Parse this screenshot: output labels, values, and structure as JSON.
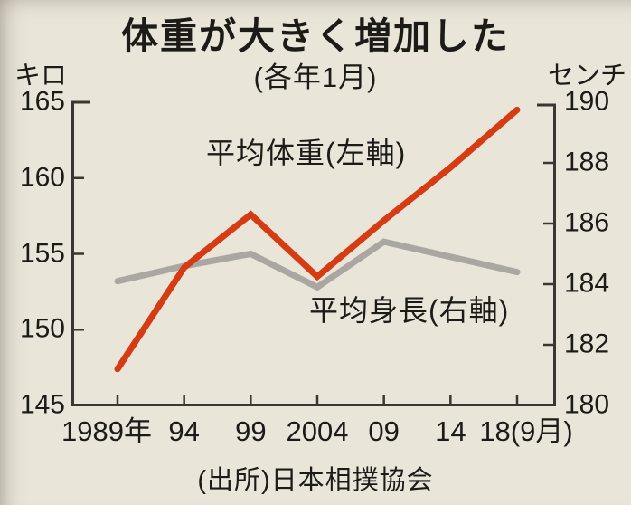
{
  "title": "体重が大きく増加した",
  "subtitle": "(各年1月)",
  "left_axis_unit": "キロ",
  "right_axis_unit": "センチ",
  "source": "(出所)日本相撲協会",
  "series_labels": {
    "weight": "平均体重(左軸)",
    "height": "平均身長(右軸)"
  },
  "colors": {
    "background": "#e9e5d9",
    "text": "#1c1b18",
    "axis": "#3a3733",
    "weight_line": "#d63c14",
    "height_line": "#aaa7a2"
  },
  "chart_data": {
    "type": "line",
    "title": "体重が大きく増加した",
    "subtitle": "(各年1月)",
    "categories": [
      "1989年",
      "94",
      "99",
      "2004",
      "09",
      "14",
      "18(9月)"
    ],
    "series": [
      {
        "name": "平均体重(左軸)",
        "axis": "left",
        "unit": "キロ",
        "color": "#d63c14",
        "values": [
          147.4,
          154.1,
          157.6,
          153.5,
          157.2,
          160.7,
          164.5
        ]
      },
      {
        "name": "平均身長(右軸)",
        "axis": "right",
        "unit": "センチ",
        "color": "#aaa7a2",
        "values": [
          184.1,
          184.6,
          185.0,
          183.9,
          185.4,
          184.9,
          184.4
        ]
      }
    ],
    "left_axis": {
      "label": "キロ",
      "min": 145,
      "max": 165,
      "tick_step": 5,
      "tick_labels": [
        "165",
        "160",
        "155",
        "150",
        "145"
      ]
    },
    "right_axis": {
      "label": "センチ",
      "min": 180,
      "max": 190,
      "tick_step": 2,
      "tick_labels": [
        "190",
        "188",
        "186",
        "184",
        "182",
        "180"
      ]
    },
    "grid": false,
    "legend_position": "inline-annotations",
    "source": "(出所)日本相撲協会"
  }
}
